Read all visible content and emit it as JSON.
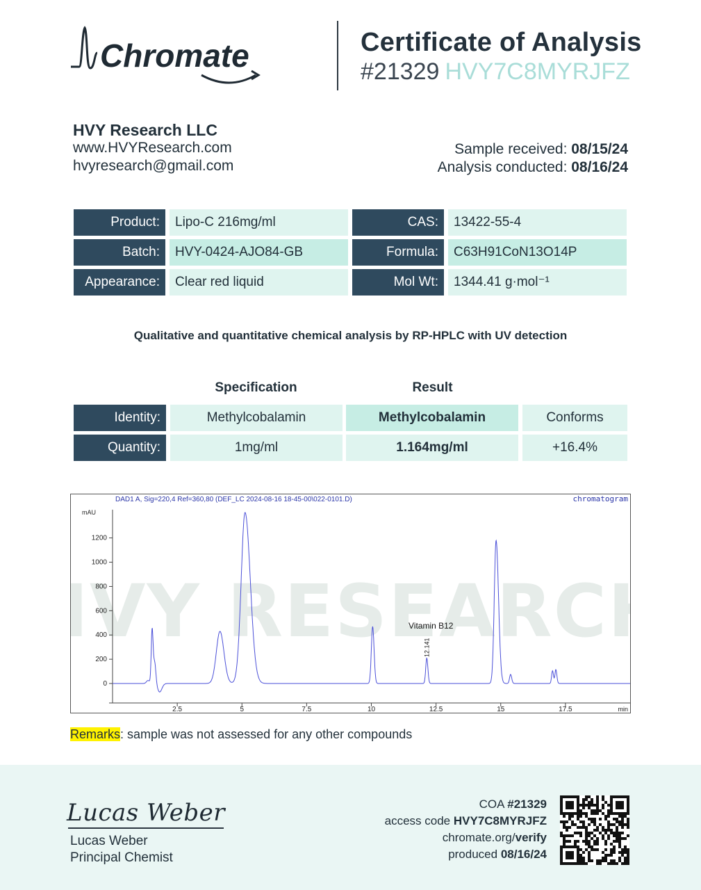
{
  "brand": {
    "name": "Chromate"
  },
  "certificate": {
    "title": "Certificate of Analysis",
    "number": "#21329",
    "code": "HVY7C8MYRJFZ"
  },
  "client": {
    "name": "HVY Research LLC",
    "website": "www.HVYResearch.com",
    "email": "hvyresearch@gmail.com"
  },
  "dates": {
    "received_label": "Sample received:",
    "received": "08/15/24",
    "conducted_label": "Analysis conducted:",
    "conducted": "08/16/24"
  },
  "product_info": {
    "product_label": "Product:",
    "product": "Lipo-C 216mg/ml",
    "batch_label": "Batch:",
    "batch": "HVY-0424-AJO84-GB",
    "appearance_label": "Appearance:",
    "appearance": "Clear red liquid",
    "cas_label": "CAS:",
    "cas": "13422-55-4",
    "formula_label": "Formula:",
    "formula": "C63H91CoN13O14P",
    "molwt_label": "Mol Wt:",
    "molwt": "1344.41 g·mol⁻¹"
  },
  "analysis": {
    "method": "Qualitative and quantitative chemical analysis by RP-HPLC with UV detection",
    "spec_header": "Specification",
    "result_header": "Result",
    "rows": [
      {
        "label": "Identity:",
        "spec": "Methylcobalamin",
        "result": "Methylcobalamin",
        "status": "Conforms"
      },
      {
        "label": "Quantity:",
        "spec": "1mg/ml",
        "result": "1.164mg/ml",
        "status": "+16.4%"
      }
    ]
  },
  "chart_data": {
    "type": "line",
    "title": "DAD1 A, Sig=220,4 Ref=360,80 (DEF_LC 2024-08-16 18-45-00\\022-0101.D)",
    "tag": "chromatogram",
    "ylabel": "mAU",
    "xlabel": "min",
    "xlim": [
      0,
      20
    ],
    "ylim": [
      -150,
      1450
    ],
    "yticks": [
      0,
      200,
      400,
      600,
      800,
      1000,
      1200
    ],
    "xticks": [
      2.5,
      5,
      7.5,
      10,
      12.5,
      15,
      17.5
    ],
    "watermark": "HVY RESEARCH",
    "annotation": {
      "label": "Vitamin B12",
      "retention_time": "12.141",
      "x": 12.141,
      "y": 210
    },
    "peaks": [
      {
        "rt": 1.37,
        "height": 25,
        "width": 0.06
      },
      {
        "rt": 1.53,
        "height": 450,
        "width": 0.035
      },
      {
        "rt": 1.63,
        "height": 170,
        "width": 0.04
      },
      {
        "rt": 1.82,
        "height": -70,
        "width": 0.08
      },
      {
        "rt": 4.15,
        "height": 430,
        "width": 0.14
      },
      {
        "rt": 5.12,
        "height": 1410,
        "width": 0.15
      },
      {
        "rt": 10.05,
        "height": 470,
        "width": 0.05
      },
      {
        "rt": 12.141,
        "height": 210,
        "width": 0.04
      },
      {
        "rt": 14.82,
        "height": 1180,
        "width": 0.07
      },
      {
        "rt": 15.38,
        "height": 75,
        "width": 0.04
      },
      {
        "rt": 17.0,
        "height": 105,
        "width": 0.035
      },
      {
        "rt": 17.13,
        "height": 115,
        "width": 0.035
      }
    ]
  },
  "remarks": {
    "label": "Remarks",
    "text": ": sample was not assessed for any other compounds"
  },
  "signoff": {
    "signature": "Lucas Weber",
    "name": "Lucas Weber",
    "role": "Principal Chemist"
  },
  "verification": {
    "coa_label": "COA",
    "coa_number": "#21329",
    "access_label": "access code",
    "access_code": "HVY7C8MYRJFZ",
    "site_prefix": "chromate.org/",
    "site_suffix": "verify",
    "produced_label": "produced",
    "produced_date": "08/16/24"
  }
}
